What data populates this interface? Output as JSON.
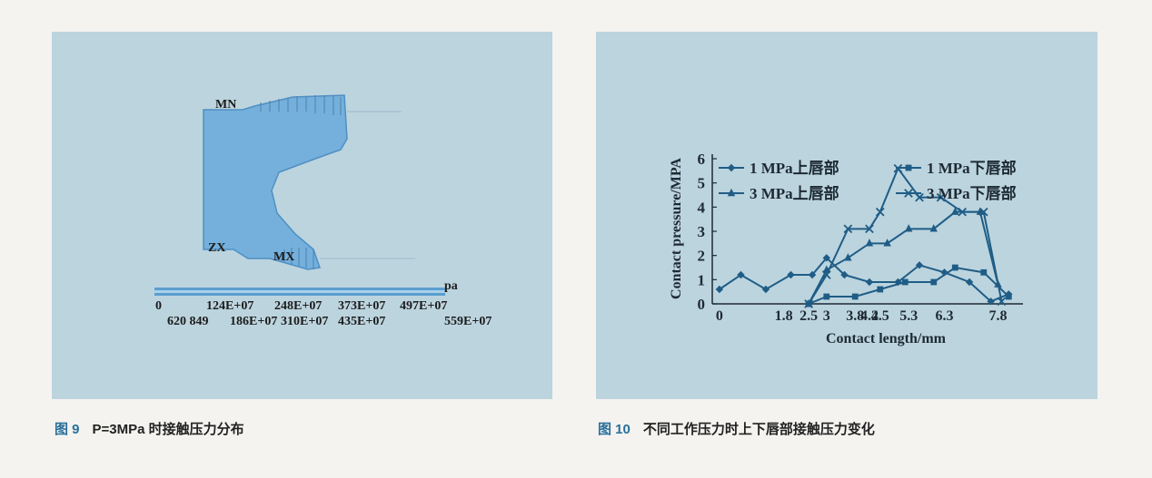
{
  "figure9": {
    "caption_number": "图 9",
    "caption_text": "P=3MPa 时接触压力分布",
    "labels": {
      "mn": "MN",
      "zx": "ZX",
      "mx": "MX"
    },
    "scale_unit": "pa",
    "scale_top": [
      "0",
      "124E+07",
      "248E+07",
      "373E+07",
      "497E+07"
    ],
    "scale_bottom": [
      "620 849",
      "186E+07",
      "310E+07",
      "435E+07",
      "559E+07"
    ],
    "colors": {
      "body": "#74b0db",
      "band": "#5b9ed0"
    }
  },
  "figure10": {
    "caption_number": "图 10",
    "caption_text": "不同工作压力时上下唇部接触压力变化"
  },
  "chart_data": {
    "type": "line",
    "title": "",
    "xlabel": "Contact length/mm",
    "ylabel": "Contact pressure/MPA",
    "ylim": [
      0,
      6
    ],
    "xlim": [
      -0.2,
      8.5
    ],
    "x_tick_labels": [
      "0",
      "1.8",
      "2.5",
      "3",
      "3.8",
      "4.2",
      "4.5",
      "5.3",
      "6.3",
      "7.8"
    ],
    "x_tick_values": [
      0,
      1.8,
      2.5,
      3,
      3.8,
      4.2,
      4.5,
      5.3,
      6.3,
      7.8
    ],
    "y_tick_labels": [
      "0",
      "1",
      "2",
      "3",
      "4",
      "5",
      "6"
    ],
    "grid": false,
    "legend": "top",
    "series": [
      {
        "name": "1 MPa上唇部",
        "marker": "diamond",
        "color": "#1f5d86",
        "x": [
          0,
          0.6,
          1.3,
          2.0,
          2.6,
          3.0,
          3.5,
          4.2,
          5.0,
          5.6,
          6.3,
          7.0,
          7.6,
          8.1
        ],
        "y": [
          0.6,
          1.2,
          0.6,
          1.2,
          1.2,
          1.9,
          1.2,
          0.9,
          0.9,
          1.6,
          1.3,
          0.9,
          0.1,
          0.4
        ]
      },
      {
        "name": "1 MPa下唇部",
        "marker": "square",
        "color": "#1f5d86",
        "x": [
          2.5,
          3.0,
          3.8,
          4.5,
          5.2,
          6.0,
          6.6,
          7.4,
          8.1
        ],
        "y": [
          0.0,
          0.3,
          0.3,
          0.6,
          0.9,
          0.9,
          1.5,
          1.3,
          0.3
        ]
      },
      {
        "name": "3 MPa上唇部",
        "marker": "triangle",
        "color": "#1f5d86",
        "x": [
          2.5,
          3.0,
          3.6,
          4.2,
          4.7,
          5.3,
          6.0,
          6.6,
          7.3,
          7.8
        ],
        "y": [
          0.0,
          1.4,
          1.9,
          2.5,
          2.5,
          3.1,
          3.1,
          3.8,
          3.8,
          0.8
        ]
      },
      {
        "name": "3 MPa下唇部",
        "marker": "x",
        "color": "#1f5d86",
        "x": [
          2.5,
          3.0,
          3.6,
          4.2,
          4.5,
          5.0,
          5.6,
          6.2,
          6.8,
          7.4,
          7.9
        ],
        "y": [
          0.0,
          1.2,
          3.1,
          3.1,
          3.8,
          5.6,
          4.4,
          4.4,
          3.8,
          3.8,
          0.1
        ]
      }
    ]
  }
}
